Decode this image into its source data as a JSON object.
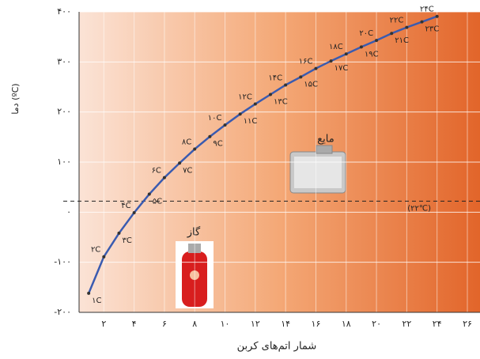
{
  "chart_data": {
    "type": "line",
    "x_label": "شمار اتم‌های کربن",
    "y_label": "دما (ºC)",
    "x": [
      1,
      2,
      3,
      4,
      5,
      6,
      7,
      8,
      9,
      10,
      11,
      12,
      13,
      14,
      15,
      16,
      17,
      18,
      19,
      20,
      21,
      22,
      23,
      24
    ],
    "series": [
      {
        "color": "#3a5bb0",
        "values": [
          -162,
          -89,
          -42,
          -1,
          36,
          69,
          98,
          126,
          151,
          174,
          196,
          216,
          235,
          254,
          270,
          287,
          302,
          316,
          330,
          343,
          357,
          369,
          380,
          391
        ],
        "labels": [
          "۱C",
          "۲C",
          "۳C",
          "۴C",
          "۵C",
          "۶C",
          "۷C",
          "۸C",
          "۹C",
          "۱۰C",
          "۱۱C",
          "۱۲C",
          "۱۳C",
          "۱۴C",
          "۱۵C",
          "۱۶C",
          "۱۷C",
          "۱۸C",
          "۱۹C",
          "۲۰C",
          "۲۱C",
          "۲۲C",
          "۲۳C",
          "۲۴C"
        ]
      }
    ],
    "xlim": [
      0,
      26
    ],
    "ylim": [
      -200,
      400
    ],
    "xticks": [
      {
        "value": 2,
        "label": "۲"
      },
      {
        "value": 4,
        "label": "۴"
      },
      {
        "value": 6,
        "label": "۶"
      },
      {
        "value": 8,
        "label": "۸"
      },
      {
        "value": 10,
        "label": "۱۰"
      },
      {
        "value": 12,
        "label": "۱۲"
      },
      {
        "value": 14,
        "label": "۱۴"
      },
      {
        "value": 16,
        "label": "۱۶"
      },
      {
        "value": 18,
        "label": "۱۸"
      },
      {
        "value": 20,
        "label": "۲۰"
      },
      {
        "value": 22,
        "label": "۲۲"
      },
      {
        "value": 24,
        "label": "۲۴"
      },
      {
        "value": 26,
        "label": "۲۶"
      }
    ],
    "yticks": [
      {
        "value": -200,
        "label": "-۲۰۰"
      },
      {
        "value": -100,
        "label": "-۱۰۰"
      },
      {
        "value": 0,
        "label": "۰"
      },
      {
        "value": 100,
        "label": "۱۰۰"
      },
      {
        "value": 200,
        "label": "۲۰۰"
      },
      {
        "value": 300,
        "label": "۳۰۰"
      },
      {
        "value": 400,
        "label": "۴۰۰"
      }
    ],
    "grid": true,
    "reference_line": {
      "value": 22,
      "label": "(۲۲℃)"
    },
    "annotations": [
      {
        "text": "مایع"
      },
      {
        "text": "گاز"
      }
    ]
  }
}
